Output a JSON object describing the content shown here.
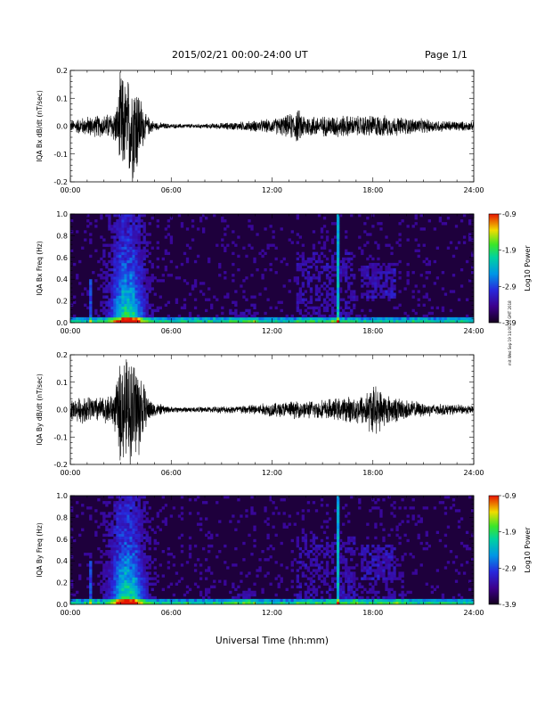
{
  "header": {
    "title": "2015/02/21  00:00-24:00 UT",
    "page": "Page 1/1"
  },
  "side_stamp": "mit Wed Sep 19 14:00:24 GMT 2018",
  "chart_data": [
    {
      "type": "line",
      "ylabel": "IQA Bx dB/dt (nT/sec)",
      "xlim": [
        0,
        24
      ],
      "ylim": [
        -0.2,
        0.2
      ],
      "x_ticks": [
        "00:00",
        "06:00",
        "12:00",
        "18:00",
        "24:00"
      ],
      "y_ticks": [
        "-0.2",
        "-0.1",
        "0.0",
        "0.1",
        "0.2"
      ],
      "series": [
        {
          "x": [
            0,
            1,
            2,
            2.5,
            2.8,
            3.0,
            3.3,
            3.6,
            3.9,
            4.2,
            4.5,
            5.0,
            6,
            8,
            10,
            11,
            12,
            13,
            13.5,
            14,
            15,
            16,
            17,
            18,
            19,
            20,
            21,
            22,
            23,
            24
          ],
          "envelope": [
            0.02,
            0.035,
            0.04,
            0.05,
            0.08,
            0.2,
            0.15,
            0.2,
            0.19,
            0.1,
            0.04,
            0.015,
            0.008,
            0.008,
            0.015,
            0.02,
            0.025,
            0.04,
            0.06,
            0.04,
            0.035,
            0.04,
            0.035,
            0.04,
            0.035,
            0.03,
            0.025,
            0.02,
            0.018,
            0.015
          ]
        }
      ]
    },
    {
      "type": "heatmap",
      "ylabel": "IQA Bx Freq (Hz)",
      "xlim": [
        0,
        24
      ],
      "ylim": [
        0,
        1.0
      ],
      "x_ticks": [
        "00:00",
        "06:00",
        "12:00",
        "18:00",
        "24:00"
      ],
      "y_ticks": [
        "0.0",
        "0.2",
        "0.4",
        "0.6",
        "0.8",
        "1.0"
      ],
      "colorbar": {
        "label": "Log10 Power",
        "ticks": [
          "-0.9",
          "-1.9",
          "-2.9",
          "-3.9"
        ],
        "range": [
          -3.9,
          -0.9
        ]
      }
    },
    {
      "type": "line",
      "ylabel": "IQA By dB/dt (nT/sec)",
      "xlim": [
        0,
        24
      ],
      "ylim": [
        -0.2,
        0.2
      ],
      "x_ticks": [
        "00:00",
        "06:00",
        "12:00",
        "18:00",
        "24:00"
      ],
      "y_ticks": [
        "-0.2",
        "-0.1",
        "0.0",
        "0.1",
        "0.2"
      ],
      "series": [
        {
          "x": [
            0,
            1,
            2,
            2.5,
            2.8,
            3.0,
            3.3,
            3.6,
            3.9,
            4.2,
            4.5,
            5.0,
            6,
            8,
            10,
            11,
            12,
            13,
            14,
            15,
            16,
            17,
            17.5,
            18,
            18.5,
            19,
            20,
            21,
            22,
            23,
            24
          ],
          "envelope": [
            0.035,
            0.05,
            0.045,
            0.06,
            0.1,
            0.2,
            0.18,
            0.2,
            0.2,
            0.14,
            0.06,
            0.025,
            0.01,
            0.01,
            0.015,
            0.02,
            0.025,
            0.03,
            0.03,
            0.035,
            0.04,
            0.05,
            0.06,
            0.09,
            0.07,
            0.05,
            0.035,
            0.025,
            0.02,
            0.018,
            0.015
          ]
        }
      ]
    },
    {
      "type": "heatmap",
      "ylabel": "IQA By Freq (Hz)",
      "xlim": [
        0,
        24
      ],
      "ylim": [
        0,
        1.0
      ],
      "x_ticks": [
        "00:00",
        "06:00",
        "12:00",
        "18:00",
        "24:00"
      ],
      "y_ticks": [
        "0.0",
        "0.2",
        "0.4",
        "0.6",
        "0.8",
        "1.0"
      ],
      "xlabel": "Universal Time (hh:mm)",
      "colorbar": {
        "label": "Log10 Power",
        "ticks": [
          "-0.9",
          "-1.9",
          "-2.9",
          "-3.9"
        ],
        "range": [
          -3.9,
          -0.9
        ]
      }
    }
  ]
}
